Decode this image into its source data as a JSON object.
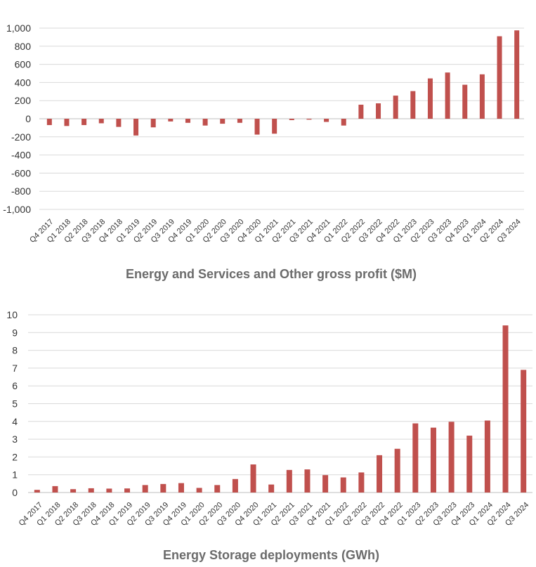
{
  "chart_data": [
    {
      "type": "bar",
      "title": "Energy and Services and Other gross profit ($M)",
      "xlabel": "",
      "ylabel": "",
      "ylim": [
        -1000,
        1000
      ],
      "yticks": [
        1000,
        800,
        600,
        400,
        200,
        0,
        -200,
        -400,
        -600,
        -800,
        -1000
      ],
      "ytick_labels": [
        "1,000",
        "800",
        "600",
        "400",
        "200",
        "0",
        "-200",
        "-400",
        "-600",
        "-800",
        "-1,000"
      ],
      "grid": true,
      "bar_color": "#c0504d",
      "categories": [
        "Q4 2017",
        "Q1 2018",
        "Q2 2018",
        "Q3 2018",
        "Q4 2018",
        "Q1 2019",
        "Q2 2019",
        "Q3 2019",
        "Q4 2019",
        "Q1 2020",
        "Q2 2020",
        "Q3 2020",
        "Q4 2020",
        "Q1 2021",
        "Q2 2021",
        "Q3 2021",
        "Q4 2021",
        "Q1 2022",
        "Q2 2022",
        "Q3 2022",
        "Q4 2022",
        "Q1 2023",
        "Q2 2023",
        "Q3 2023",
        "Q4 2023",
        "Q1 2024",
        "Q2 2024",
        "Q3 2024"
      ],
      "values": [
        -70,
        -80,
        -70,
        -50,
        -90,
        -185,
        -95,
        -30,
        -45,
        -75,
        -55,
        -45,
        -175,
        -165,
        -15,
        -10,
        -35,
        -75,
        155,
        170,
        255,
        305,
        445,
        510,
        375,
        490,
        910,
        975
      ]
    },
    {
      "type": "bar",
      "title": "Energy Storage deployments (GWh)",
      "xlabel": "",
      "ylabel": "",
      "ylim": [
        0,
        10
      ],
      "yticks": [
        10,
        9,
        8,
        7,
        6,
        5,
        4,
        3,
        2,
        1,
        0
      ],
      "ytick_labels": [
        "10",
        "9",
        "8",
        "7",
        "6",
        "5",
        "4",
        "3",
        "2",
        "1",
        "0"
      ],
      "grid": true,
      "bar_color": "#c0504d",
      "categories": [
        "Q4 2017",
        "Q1 2018",
        "Q2 2018",
        "Q3 2018",
        "Q4 2018",
        "Q1 2019",
        "Q2 2019",
        "Q3 2019",
        "Q4 2019",
        "Q1 2020",
        "Q2 2020",
        "Q3 2020",
        "Q4 2020",
        "Q1 2021",
        "Q2 2021",
        "Q3 2021",
        "Q4 2021",
        "Q1 2022",
        "Q2 2022",
        "Q3 2022",
        "Q4 2022",
        "Q1 2023",
        "Q2 2023",
        "Q3 2023",
        "Q4 2023",
        "Q1 2024",
        "Q2 2024",
        "Q3 2024"
      ],
      "values": [
        0.15,
        0.36,
        0.19,
        0.24,
        0.22,
        0.23,
        0.42,
        0.48,
        0.53,
        0.26,
        0.42,
        0.76,
        1.58,
        0.45,
        1.27,
        1.3,
        0.98,
        0.85,
        1.13,
        2.1,
        2.46,
        3.89,
        3.65,
        3.98,
        3.2,
        4.05,
        9.4,
        6.9
      ]
    }
  ]
}
